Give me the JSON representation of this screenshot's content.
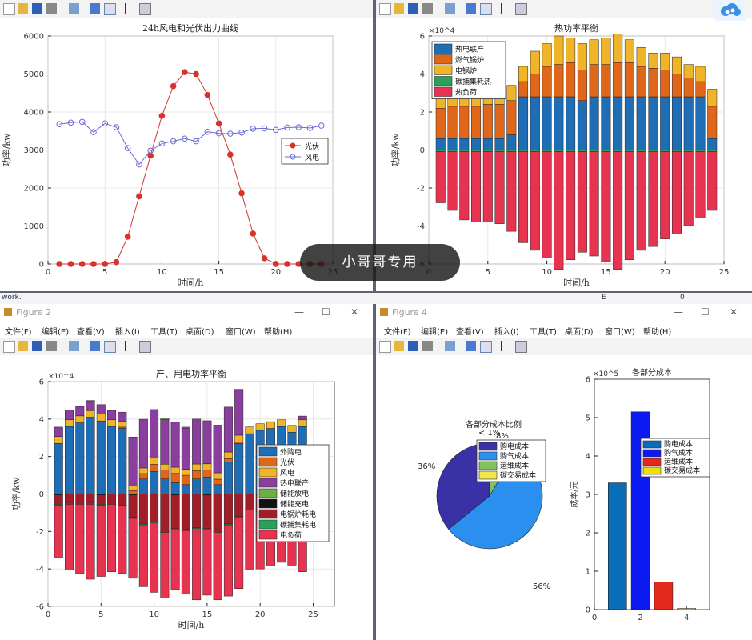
{
  "watermark": "小哥哥专用",
  "background_text": {
    "left": "work.",
    "middle": "E",
    "right": "0"
  },
  "figure2": {
    "title": "Figure 2",
    "menus": [
      "文件(F)",
      "编辑(E)",
      "查看(V)",
      "插入(I)",
      "工具(T)",
      "桌面(D)",
      "窗口(W)",
      "帮助(H)"
    ]
  },
  "figure4": {
    "title": "Figure 4",
    "menus": [
      "文件(F)",
      "编辑(E)",
      "查看(V)",
      "插入(I)",
      "工具(T)",
      "桌面(D)",
      "窗口(W)",
      "帮助(H)"
    ]
  },
  "colors": {
    "pv": "#d7322b",
    "wind": "#6a6ad6",
    "c1": "#1f6db5",
    "c2": "#e0661a",
    "c3": "#f0b429",
    "c4": "#8a3e9e",
    "c5": "#6fae45",
    "c6": "#111111",
    "c7": "#a31d29",
    "c8": "#2aa05a",
    "c9": "#e83350",
    "buy_elec": "#3a31a6",
    "buy_gas": "#2b8ff0",
    "om": "#83c05f",
    "carbon": "#f3e44f",
    "bar_elec": "#0a6db8",
    "bar_gas": "#0a1af0",
    "bar_om": "#e3281c",
    "bar_carbon": "#f0e000"
  },
  "chart_data": [
    {
      "id": "pv_wind",
      "type": "line",
      "title": "24h风电和光伏出力曲线",
      "xlabel": "时间/h",
      "ylabel": "功率/kw",
      "xlim": [
        0,
        25
      ],
      "ylim": [
        0,
        6000
      ],
      "xticks": [
        0,
        5,
        10,
        15,
        20,
        25
      ],
      "yticks": [
        0,
        1000,
        2000,
        3000,
        4000,
        5000,
        6000
      ],
      "grid": true,
      "legend": "right-middle",
      "x": [
        1,
        2,
        3,
        4,
        5,
        6,
        7,
        8,
        9,
        10,
        11,
        12,
        13,
        14,
        15,
        16,
        17,
        18,
        19,
        20,
        21,
        22,
        23,
        24
      ],
      "series": [
        {
          "name": "光伏",
          "values": [
            0,
            0,
            0,
            0,
            0,
            50,
            720,
            1780,
            2850,
            3900,
            4680,
            5050,
            5000,
            4450,
            3700,
            2880,
            1860,
            800,
            150,
            0,
            0,
            0,
            0,
            0
          ]
        },
        {
          "name": "风电",
          "values": [
            3680,
            3720,
            3740,
            3470,
            3700,
            3600,
            3050,
            2620,
            2980,
            3170,
            3230,
            3300,
            3230,
            3480,
            3440,
            3430,
            3460,
            3560,
            3570,
            3530,
            3590,
            3600,
            3580,
            3640
          ]
        }
      ]
    },
    {
      "id": "heat_balance",
      "type": "bar",
      "stacked": true,
      "title": "热功率平衡",
      "xlabel": "时间/h",
      "ylabel": "功率/kw",
      "exponent": "×10^4",
      "xlim": [
        0,
        25
      ],
      "ylim": [
        -6,
        6
      ],
      "xticks": [
        0,
        5,
        10,
        15,
        20,
        25
      ],
      "yticks": [
        -6,
        -4,
        -2,
        0,
        2,
        4,
        6
      ],
      "grid": true,
      "legend": "top-left",
      "x": [
        1,
        2,
        3,
        4,
        5,
        6,
        7,
        8,
        9,
        10,
        11,
        12,
        13,
        14,
        15,
        16,
        17,
        18,
        19,
        20,
        21,
        22,
        23,
        24
      ],
      "series": [
        {
          "name": "热电联产",
          "values": [
            0.6,
            0.6,
            0.6,
            0.6,
            0.6,
            0.6,
            0.8,
            2.8,
            2.8,
            2.8,
            2.8,
            2.8,
            2.6,
            2.8,
            2.8,
            2.8,
            2.8,
            2.8,
            2.8,
            2.8,
            2.8,
            2.8,
            2.8,
            0.6
          ]
        },
        {
          "name": "燃气锅炉",
          "values": [
            1.6,
            1.7,
            1.7,
            1.7,
            1.8,
            1.8,
            1.8,
            0.8,
            1.2,
            1.6,
            1.7,
            1.8,
            1.6,
            1.7,
            1.7,
            1.8,
            1.8,
            1.6,
            1.5,
            1.4,
            1.2,
            1.0,
            0.8,
            1.7
          ]
        },
        {
          "name": "电锅炉",
          "values": [
            0.6,
            0.6,
            0.5,
            0.6,
            0.6,
            0.6,
            0.8,
            0.8,
            1.2,
            1.2,
            1.5,
            1.3,
            1.4,
            1.3,
            1.4,
            1.5,
            1.2,
            1.0,
            0.8,
            0.9,
            0.9,
            0.7,
            0.8,
            0.9
          ]
        },
        {
          "name": "碳捕集耗热",
          "values": [
            -0.08,
            -0.08,
            -0.08,
            -0.08,
            -0.08,
            -0.08,
            -0.08,
            -0.08,
            -0.08,
            -0.08,
            -0.08,
            -0.08,
            -0.08,
            -0.08,
            -0.08,
            -0.08,
            -0.08,
            -0.08,
            -0.08,
            -0.08,
            -0.08,
            -0.08,
            -0.08,
            -0.08
          ]
        },
        {
          "name": "热负荷",
          "values": [
            -2.7,
            -3.1,
            -3.6,
            -3.7,
            -3.7,
            -3.8,
            -4.2,
            -4.8,
            -5.2,
            -5.6,
            -6.2,
            -5.7,
            -5.3,
            -5.5,
            -5.8,
            -6.2,
            -5.7,
            -5.2,
            -5.0,
            -4.6,
            -4.3,
            -3.9,
            -3.5,
            -3.1
          ]
        }
      ]
    },
    {
      "id": "power_balance",
      "type": "bar",
      "stacked": true,
      "title": "产、用电功率平衡",
      "xlabel": "时间/h",
      "ylabel": "功率/kw",
      "exponent": "×10^4",
      "xlim": [
        0,
        27
      ],
      "ylim": [
        -6,
        6
      ],
      "xticks": [
        0,
        5,
        10,
        15,
        20,
        25
      ],
      "yticks": [
        -6,
        -4,
        -2,
        0,
        2,
        4,
        6
      ],
      "grid": true,
      "legend": "right-middle",
      "x": [
        1,
        2,
        3,
        4,
        5,
        6,
        7,
        8,
        9,
        10,
        11,
        12,
        13,
        14,
        15,
        16,
        17,
        18,
        19,
        20,
        21,
        22,
        23,
        24
      ],
      "series": [
        {
          "name": "外购电",
          "values": [
            2.7,
            3.6,
            3.8,
            4.1,
            3.9,
            3.6,
            3.5,
            0,
            0.8,
            1.2,
            0.8,
            0.6,
            0.5,
            0.8,
            0.9,
            0.5,
            1.7,
            2.7,
            3.2,
            3.4,
            3.5,
            3.6,
            3.3,
            3.6
          ]
        },
        {
          "name": "光伏",
          "values": [
            0,
            0,
            0,
            0,
            0,
            0,
            0.07,
            0.18,
            0.29,
            0.39,
            0.47,
            0.5,
            0.5,
            0.45,
            0.37,
            0.29,
            0.19,
            0.08,
            0.02,
            0,
            0,
            0,
            0,
            0
          ]
        },
        {
          "name": "风电",
          "values": [
            0.37,
            0.37,
            0.37,
            0.35,
            0.37,
            0.36,
            0.3,
            0.26,
            0.3,
            0.32,
            0.32,
            0.33,
            0.32,
            0.35,
            0.34,
            0.34,
            0.35,
            0.36,
            0.36,
            0.35,
            0.36,
            0.36,
            0.36,
            0.36
          ]
        },
        {
          "name": "热电联产",
          "values": [
            0.5,
            0.5,
            0.5,
            0.5,
            0.5,
            0.5,
            0.5,
            2.6,
            2.6,
            2.6,
            2.4,
            2.4,
            2.2,
            2.4,
            2.3,
            2.5,
            2.4,
            2.4,
            0,
            0,
            0,
            0,
            0,
            0.2
          ]
        },
        {
          "name": "储能放电",
          "values": [
            0,
            0,
            0,
            0.04,
            0,
            0,
            0,
            0,
            0,
            0,
            0.06,
            0,
            0.05,
            0,
            0,
            0.05,
            0,
            0.05,
            0,
            0,
            0,
            0,
            0,
            0
          ]
        },
        {
          "name": "储能充电",
          "values": [
            -0.05,
            0,
            0,
            0,
            -0.05,
            0,
            0,
            -0.05,
            0,
            0,
            0,
            -0.05,
            0,
            0,
            -0.05,
            0,
            0,
            0,
            0,
            -0.05,
            0,
            0,
            -0.05,
            0
          ]
        },
        {
          "name": "电锅炉耗电",
          "values": [
            -0.5,
            -0.5,
            -0.5,
            -0.5,
            -0.5,
            -0.5,
            -0.6,
            -1.2,
            -1.6,
            -1.5,
            -2.0,
            -1.8,
            -1.9,
            -1.8,
            -1.8,
            -2.0,
            -1.6,
            -1.2,
            -0.8,
            -0.9,
            -0.9,
            -0.7,
            -0.8,
            -0.9
          ]
        },
        {
          "name": "碳捕集耗电",
          "values": [
            -0.05,
            -0.05,
            -0.05,
            -0.05,
            -0.05,
            -0.05,
            -0.05,
            -0.05,
            -0.05,
            -0.05,
            -0.05,
            -0.05,
            -0.05,
            -0.05,
            -0.05,
            -0.05,
            -0.05,
            -0.05,
            -0.05,
            -0.05,
            -0.05,
            -0.05,
            -0.05,
            -0.05
          ]
        },
        {
          "name": "电负荷",
          "values": [
            -2.8,
            -3.5,
            -3.7,
            -4.0,
            -3.8,
            -3.6,
            -3.6,
            -3.2,
            -3.3,
            -3.7,
            -3.5,
            -3.2,
            -3.4,
            -3.8,
            -3.5,
            -3.6,
            -3.8,
            -3.8,
            -3.2,
            -3.0,
            -2.9,
            -2.9,
            -2.9,
            -3.2
          ]
        }
      ]
    },
    {
      "id": "cost_pie",
      "type": "pie",
      "title": "各部分成本比例",
      "legend": "top-right",
      "labels": [
        "购电成本",
        "购气成本",
        "运维成本",
        "碳交易成本"
      ],
      "values": [
        36,
        56,
        8,
        0.4
      ],
      "slice_labels": [
        "36%",
        "56%",
        "8%",
        "< 1%"
      ]
    },
    {
      "id": "cost_bar",
      "type": "bar",
      "title": "各部分成本",
      "ylabel": "成本/元",
      "exponent": "×10^5",
      "xlim": [
        0,
        5
      ],
      "ylim": [
        0,
        6
      ],
      "xticks": [
        0,
        2,
        4
      ],
      "yticks": [
        0,
        1,
        2,
        3,
        4,
        5,
        6
      ],
      "legend": "top-right",
      "categories": [
        "1",
        "2",
        "3",
        "4"
      ],
      "labels": [
        "购电成本",
        "购气成本",
        "运维成本",
        "碳交易成本"
      ],
      "values": [
        3.3,
        5.15,
        0.72,
        0.03
      ]
    }
  ]
}
